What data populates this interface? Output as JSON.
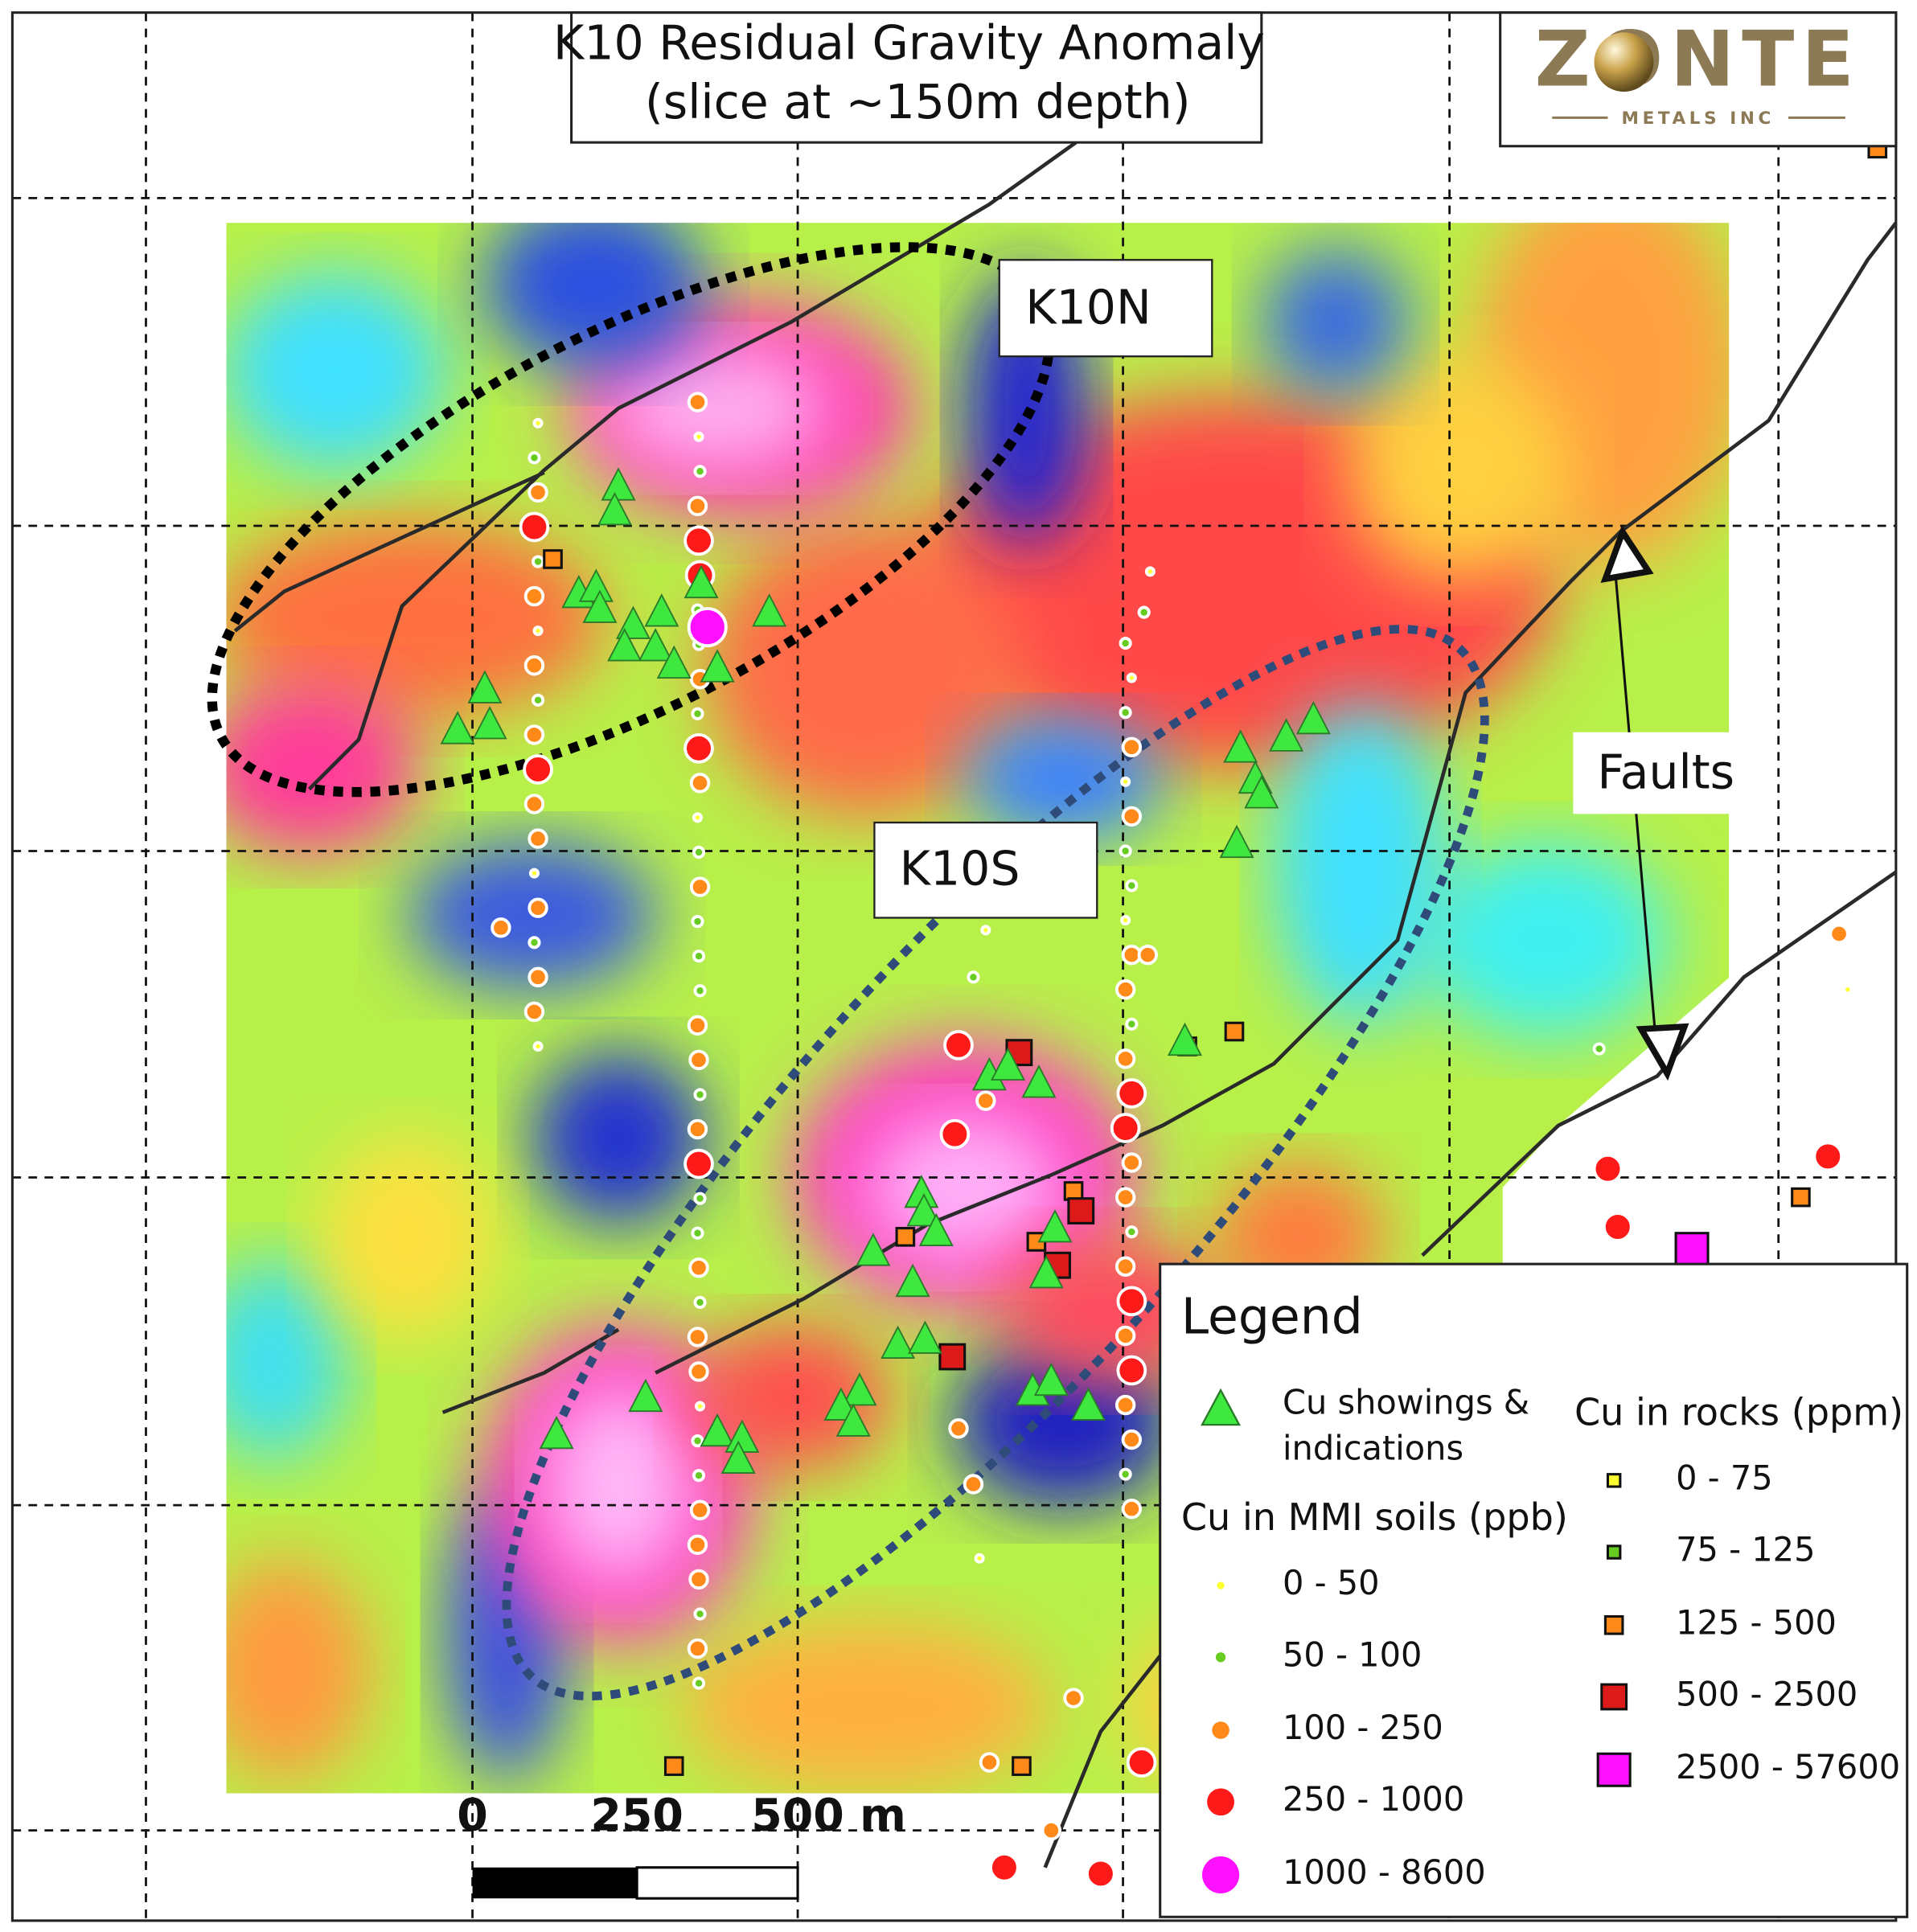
{
  "title": [
    "K10 Residual Gravity Anomaly",
    "(slice at ~150m depth)"
  ],
  "logo": {
    "name": "ZONTE",
    "sub": "METALS INC"
  },
  "labels": {
    "k10n": "K10N",
    "k10s": "K10S",
    "faults": "Faults"
  },
  "scale_bar": [
    "0",
    "250",
    "500 m"
  ],
  "legend": {
    "title": "Legend",
    "showings": [
      "Cu showings &",
      "indications"
    ],
    "soils": {
      "title": "Cu in MMI soils (ppb)",
      "classes": [
        "0 - 50",
        "50 - 100",
        "100 - 250",
        "250 - 1000",
        "1000 - 8600"
      ]
    },
    "rocks": {
      "title": "Cu in rocks (ppm)",
      "classes": [
        "0 - 75",
        "75 - 125",
        "125 - 500",
        "500 - 2500",
        "2500 - 57600"
      ]
    }
  }
}
